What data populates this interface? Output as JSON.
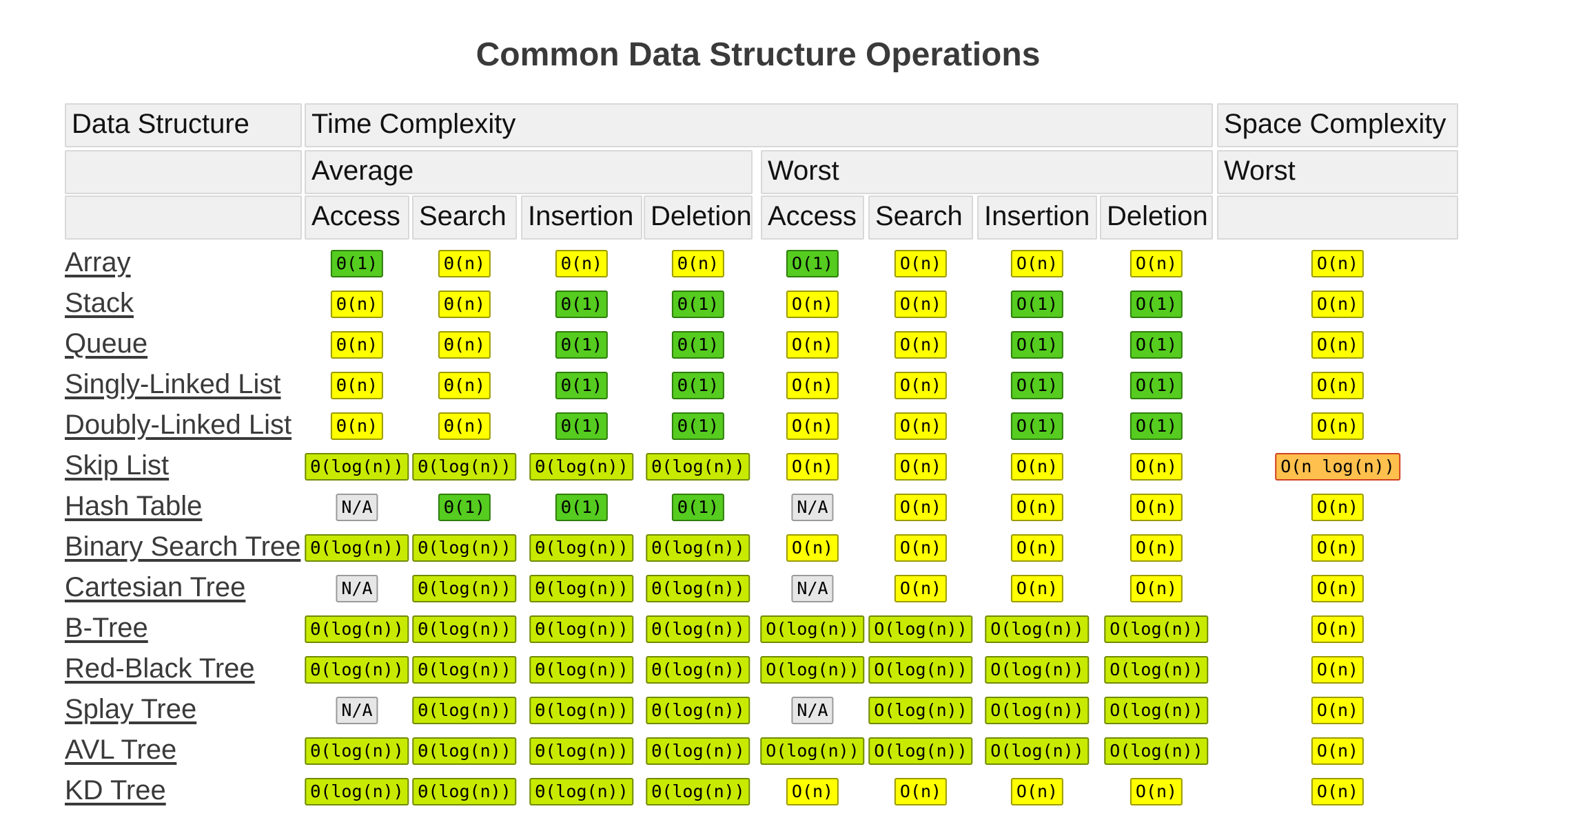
{
  "title": "Common Data Structure Operations",
  "header": {
    "row1": [
      "Data Structure",
      "Time Complexity",
      "Space Complexity"
    ],
    "row2": [
      "",
      "Average",
      "Worst",
      "Worst"
    ],
    "row3": [
      "",
      "Access",
      "Search",
      "Insertion",
      "Deletion",
      "Access",
      "Search",
      "Insertion",
      "Deletion",
      ""
    ]
  },
  "colors": {
    "good": "#55cc1f",
    "fair": "#c8ea00",
    "bad": "#ffff00",
    "worse": "#ffc04d",
    "na": "#e6e6e6"
  },
  "rows": [
    {
      "name": "Array",
      "cells": [
        [
          "Θ(1)",
          "good"
        ],
        [
          "Θ(n)",
          "bad"
        ],
        [
          "Θ(n)",
          "bad"
        ],
        [
          "Θ(n)",
          "bad"
        ],
        [
          "O(1)",
          "good"
        ],
        [
          "O(n)",
          "bad"
        ],
        [
          "O(n)",
          "bad"
        ],
        [
          "O(n)",
          "bad"
        ],
        [
          "O(n)",
          "bad"
        ]
      ]
    },
    {
      "name": "Stack",
      "cells": [
        [
          "Θ(n)",
          "bad"
        ],
        [
          "Θ(n)",
          "bad"
        ],
        [
          "Θ(1)",
          "good"
        ],
        [
          "Θ(1)",
          "good"
        ],
        [
          "O(n)",
          "bad"
        ],
        [
          "O(n)",
          "bad"
        ],
        [
          "O(1)",
          "good"
        ],
        [
          "O(1)",
          "good"
        ],
        [
          "O(n)",
          "bad"
        ]
      ]
    },
    {
      "name": "Queue",
      "cells": [
        [
          "Θ(n)",
          "bad"
        ],
        [
          "Θ(n)",
          "bad"
        ],
        [
          "Θ(1)",
          "good"
        ],
        [
          "Θ(1)",
          "good"
        ],
        [
          "O(n)",
          "bad"
        ],
        [
          "O(n)",
          "bad"
        ],
        [
          "O(1)",
          "good"
        ],
        [
          "O(1)",
          "good"
        ],
        [
          "O(n)",
          "bad"
        ]
      ]
    },
    {
      "name": "Singly-Linked List",
      "cells": [
        [
          "Θ(n)",
          "bad"
        ],
        [
          "Θ(n)",
          "bad"
        ],
        [
          "Θ(1)",
          "good"
        ],
        [
          "Θ(1)",
          "good"
        ],
        [
          "O(n)",
          "bad"
        ],
        [
          "O(n)",
          "bad"
        ],
        [
          "O(1)",
          "good"
        ],
        [
          "O(1)",
          "good"
        ],
        [
          "O(n)",
          "bad"
        ]
      ]
    },
    {
      "name": "Doubly-Linked List",
      "cells": [
        [
          "Θ(n)",
          "bad"
        ],
        [
          "Θ(n)",
          "bad"
        ],
        [
          "Θ(1)",
          "good"
        ],
        [
          "Θ(1)",
          "good"
        ],
        [
          "O(n)",
          "bad"
        ],
        [
          "O(n)",
          "bad"
        ],
        [
          "O(1)",
          "good"
        ],
        [
          "O(1)",
          "good"
        ],
        [
          "O(n)",
          "bad"
        ]
      ]
    },
    {
      "name": "Skip List",
      "cells": [
        [
          "Θ(log(n))",
          "fair"
        ],
        [
          "Θ(log(n))",
          "fair"
        ],
        [
          "Θ(log(n))",
          "fair"
        ],
        [
          "Θ(log(n))",
          "fair"
        ],
        [
          "O(n)",
          "bad"
        ],
        [
          "O(n)",
          "bad"
        ],
        [
          "O(n)",
          "bad"
        ],
        [
          "O(n)",
          "bad"
        ],
        [
          "O(n log(n))",
          "worse"
        ]
      ]
    },
    {
      "name": "Hash Table",
      "cells": [
        [
          "N/A",
          "na"
        ],
        [
          "Θ(1)",
          "good"
        ],
        [
          "Θ(1)",
          "good"
        ],
        [
          "Θ(1)",
          "good"
        ],
        [
          "N/A",
          "na"
        ],
        [
          "O(n)",
          "bad"
        ],
        [
          "O(n)",
          "bad"
        ],
        [
          "O(n)",
          "bad"
        ],
        [
          "O(n)",
          "bad"
        ]
      ]
    },
    {
      "name": "Binary Search Tree",
      "cells": [
        [
          "Θ(log(n))",
          "fair"
        ],
        [
          "Θ(log(n))",
          "fair"
        ],
        [
          "Θ(log(n))",
          "fair"
        ],
        [
          "Θ(log(n))",
          "fair"
        ],
        [
          "O(n)",
          "bad"
        ],
        [
          "O(n)",
          "bad"
        ],
        [
          "O(n)",
          "bad"
        ],
        [
          "O(n)",
          "bad"
        ],
        [
          "O(n)",
          "bad"
        ]
      ]
    },
    {
      "name": "Cartesian Tree",
      "cells": [
        [
          "N/A",
          "na"
        ],
        [
          "Θ(log(n))",
          "fair"
        ],
        [
          "Θ(log(n))",
          "fair"
        ],
        [
          "Θ(log(n))",
          "fair"
        ],
        [
          "N/A",
          "na"
        ],
        [
          "O(n)",
          "bad"
        ],
        [
          "O(n)",
          "bad"
        ],
        [
          "O(n)",
          "bad"
        ],
        [
          "O(n)",
          "bad"
        ]
      ]
    },
    {
      "name": "B-Tree",
      "cells": [
        [
          "Θ(log(n))",
          "fair"
        ],
        [
          "Θ(log(n))",
          "fair"
        ],
        [
          "Θ(log(n))",
          "fair"
        ],
        [
          "Θ(log(n))",
          "fair"
        ],
        [
          "O(log(n))",
          "fair"
        ],
        [
          "O(log(n))",
          "fair"
        ],
        [
          "O(log(n))",
          "fair"
        ],
        [
          "O(log(n))",
          "fair"
        ],
        [
          "O(n)",
          "bad"
        ]
      ]
    },
    {
      "name": "Red-Black Tree",
      "cells": [
        [
          "Θ(log(n))",
          "fair"
        ],
        [
          "Θ(log(n))",
          "fair"
        ],
        [
          "Θ(log(n))",
          "fair"
        ],
        [
          "Θ(log(n))",
          "fair"
        ],
        [
          "O(log(n))",
          "fair"
        ],
        [
          "O(log(n))",
          "fair"
        ],
        [
          "O(log(n))",
          "fair"
        ],
        [
          "O(log(n))",
          "fair"
        ],
        [
          "O(n)",
          "bad"
        ]
      ]
    },
    {
      "name": "Splay Tree",
      "cells": [
        [
          "N/A",
          "na"
        ],
        [
          "Θ(log(n))",
          "fair"
        ],
        [
          "Θ(log(n))",
          "fair"
        ],
        [
          "Θ(log(n))",
          "fair"
        ],
        [
          "N/A",
          "na"
        ],
        [
          "O(log(n))",
          "fair"
        ],
        [
          "O(log(n))",
          "fair"
        ],
        [
          "O(log(n))",
          "fair"
        ],
        [
          "O(n)",
          "bad"
        ]
      ]
    },
    {
      "name": "AVL Tree",
      "cells": [
        [
          "Θ(log(n))",
          "fair"
        ],
        [
          "Θ(log(n))",
          "fair"
        ],
        [
          "Θ(log(n))",
          "fair"
        ],
        [
          "Θ(log(n))",
          "fair"
        ],
        [
          "O(log(n))",
          "fair"
        ],
        [
          "O(log(n))",
          "fair"
        ],
        [
          "O(log(n))",
          "fair"
        ],
        [
          "O(log(n))",
          "fair"
        ],
        [
          "O(n)",
          "bad"
        ]
      ]
    },
    {
      "name": "KD Tree",
      "cells": [
        [
          "Θ(log(n))",
          "fair"
        ],
        [
          "Θ(log(n))",
          "fair"
        ],
        [
          "Θ(log(n))",
          "fair"
        ],
        [
          "Θ(log(n))",
          "fair"
        ],
        [
          "O(n)",
          "bad"
        ],
        [
          "O(n)",
          "bad"
        ],
        [
          "O(n)",
          "bad"
        ],
        [
          "O(n)",
          "bad"
        ],
        [
          "O(n)",
          "bad"
        ]
      ]
    }
  ]
}
